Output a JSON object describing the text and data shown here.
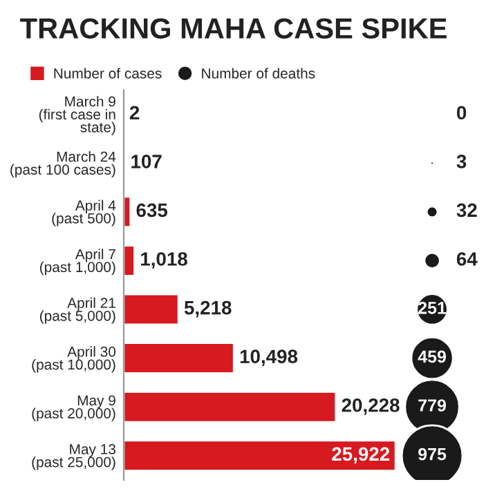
{
  "chart_data": [
    {
      "type": "bar",
      "orientation": "horizontal",
      "title": "TRACKING MAHA CASE SPIKE",
      "categories": [
        "March 9\n(first case in\nstate)",
        "March 24\n(past 100 cases)",
        "April 4\n(past 500)",
        "April 7\n(past 1,000)",
        "April 21\n(past 5,000)",
        "April 30\n(past 10,000)",
        "May 9\n(past 20,000)",
        "May 13\n(past 25,000)"
      ],
      "series": [
        {
          "name": "Number of cases",
          "color": "#d71920",
          "values": [
            2,
            107,
            635,
            1018,
            5218,
            10498,
            20228,
            25922
          ],
          "value_labels": [
            "2",
            "107",
            "635",
            "1,018",
            "5,218",
            "10,498",
            "20,228",
            "25,922"
          ]
        }
      ],
      "legend": "top left",
      "tick_labels": "y"
    },
    {
      "type": "other",
      "series": [
        {
          "name": "Number of deaths",
          "color": "#1a1a1a",
          "values": [
            0,
            3,
            32,
            64,
            251,
            459,
            779,
            975
          ]
        }
      ],
      "data_labels": true
    }
  ]
}
